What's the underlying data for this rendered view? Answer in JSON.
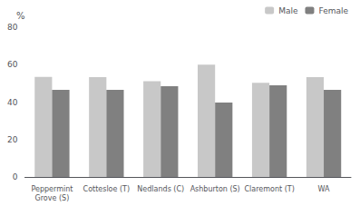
{
  "chart_data": {
    "type": "bar",
    "categories": [
      "Peppermint\nGrove (S)",
      "Cottesloe (T)",
      "Nedlands (C)",
      "Ashburton (S)",
      "Claremont (T)",
      "WA"
    ],
    "series": [
      {
        "name": "Male",
        "color": "#c8c8c8",
        "values": [
          53.5,
          53.3,
          51.2,
          60.0,
          50.3,
          53.3
        ]
      },
      {
        "name": "Female",
        "color": "#808080",
        "values": [
          46.5,
          46.5,
          48.5,
          39.8,
          49.0,
          46.5
        ]
      }
    ],
    "ylabel": "%",
    "ylim": [
      0,
      80
    ],
    "yticks": [
      0,
      20,
      40,
      60,
      80
    ],
    "grid": false,
    "legend": "upper right"
  }
}
